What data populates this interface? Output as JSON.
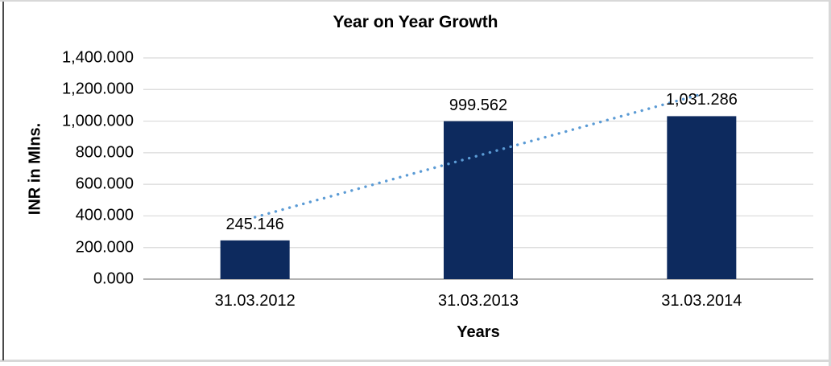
{
  "frame": {
    "background": "#ffffff",
    "border_color_light": "#d8d8d8",
    "border_color_dark": "#4a4a4a"
  },
  "chart_data": {
    "type": "bar",
    "title": "Year on Year Growth",
    "xlabel": "Years",
    "ylabel": "INR in Mlns.",
    "categories": [
      "31.03.2012",
      "31.03.2013",
      "31.03.2014"
    ],
    "values": [
      245.146,
      999.562,
      1031.286
    ],
    "data_labels": [
      "245.146",
      "999.562",
      "1,031.286"
    ],
    "ylim": [
      0,
      1400
    ],
    "ytick_step": 200,
    "ytick_labels": [
      "0.000",
      "200.000",
      "400.000",
      "600.000",
      "800.000",
      "1,000.000",
      "1,200.000",
      "1,400.000"
    ],
    "grid": true,
    "legend": "none",
    "bar_color": "#0d2a5e",
    "gridline_color": "#d9d9d9",
    "axis_line_color": "#9a9a9a",
    "trendline": {
      "style": "dotted",
      "color": "#5b9bd5",
      "start_category_index": 0,
      "start_value": 392,
      "end_category_index": 2,
      "end_value": 1171
    }
  }
}
